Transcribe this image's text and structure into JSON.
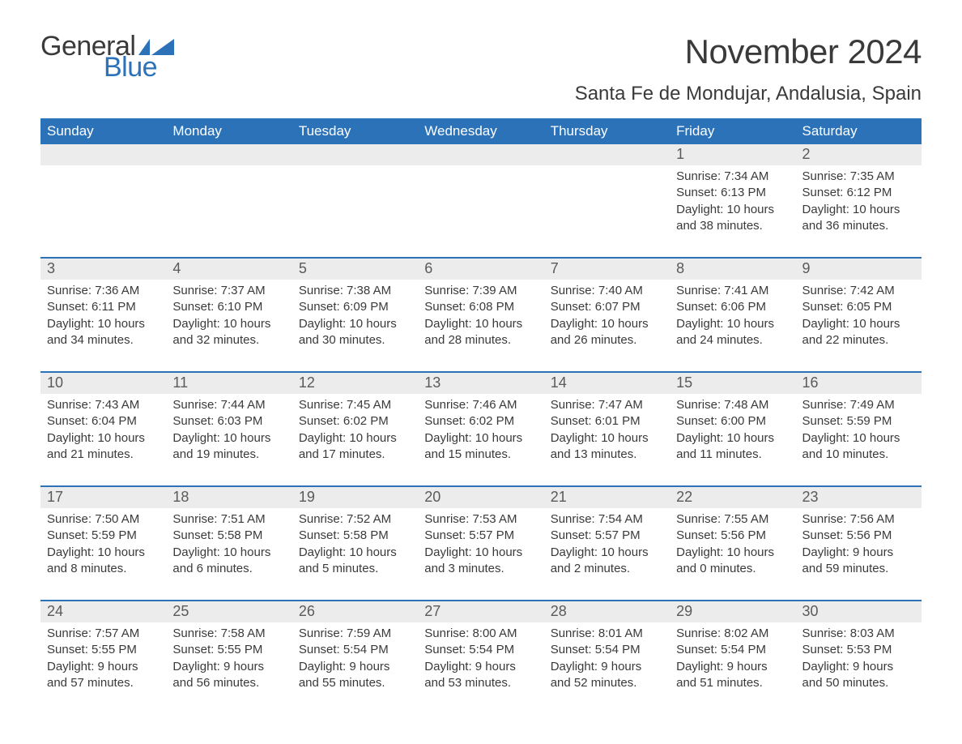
{
  "brand": {
    "general": "General",
    "blue": "Blue"
  },
  "colors": {
    "header_bg": "#2b72b9",
    "header_text": "#ffffff",
    "daynum_bg": "#ececec",
    "daynum_text": "#5a5a5a",
    "body_text": "#3a3a3a",
    "row_border": "#2b72b9",
    "brand_blue": "#2b72b9"
  },
  "title": "November 2024",
  "location": "Santa Fe de Mondujar, Andalusia, Spain",
  "day_headers": [
    "Sunday",
    "Monday",
    "Tuesday",
    "Wednesday",
    "Thursday",
    "Friday",
    "Saturday"
  ],
  "weeks": [
    [
      null,
      null,
      null,
      null,
      null,
      {
        "num": "1",
        "sunrise": "Sunrise: 7:34 AM",
        "sunset": "Sunset: 6:13 PM",
        "day1": "Daylight: 10 hours",
        "day2": "and 38 minutes."
      },
      {
        "num": "2",
        "sunrise": "Sunrise: 7:35 AM",
        "sunset": "Sunset: 6:12 PM",
        "day1": "Daylight: 10 hours",
        "day2": "and 36 minutes."
      }
    ],
    [
      {
        "num": "3",
        "sunrise": "Sunrise: 7:36 AM",
        "sunset": "Sunset: 6:11 PM",
        "day1": "Daylight: 10 hours",
        "day2": "and 34 minutes."
      },
      {
        "num": "4",
        "sunrise": "Sunrise: 7:37 AM",
        "sunset": "Sunset: 6:10 PM",
        "day1": "Daylight: 10 hours",
        "day2": "and 32 minutes."
      },
      {
        "num": "5",
        "sunrise": "Sunrise: 7:38 AM",
        "sunset": "Sunset: 6:09 PM",
        "day1": "Daylight: 10 hours",
        "day2": "and 30 minutes."
      },
      {
        "num": "6",
        "sunrise": "Sunrise: 7:39 AM",
        "sunset": "Sunset: 6:08 PM",
        "day1": "Daylight: 10 hours",
        "day2": "and 28 minutes."
      },
      {
        "num": "7",
        "sunrise": "Sunrise: 7:40 AM",
        "sunset": "Sunset: 6:07 PM",
        "day1": "Daylight: 10 hours",
        "day2": "and 26 minutes."
      },
      {
        "num": "8",
        "sunrise": "Sunrise: 7:41 AM",
        "sunset": "Sunset: 6:06 PM",
        "day1": "Daylight: 10 hours",
        "day2": "and 24 minutes."
      },
      {
        "num": "9",
        "sunrise": "Sunrise: 7:42 AM",
        "sunset": "Sunset: 6:05 PM",
        "day1": "Daylight: 10 hours",
        "day2": "and 22 minutes."
      }
    ],
    [
      {
        "num": "10",
        "sunrise": "Sunrise: 7:43 AM",
        "sunset": "Sunset: 6:04 PM",
        "day1": "Daylight: 10 hours",
        "day2": "and 21 minutes."
      },
      {
        "num": "11",
        "sunrise": "Sunrise: 7:44 AM",
        "sunset": "Sunset: 6:03 PM",
        "day1": "Daylight: 10 hours",
        "day2": "and 19 minutes."
      },
      {
        "num": "12",
        "sunrise": "Sunrise: 7:45 AM",
        "sunset": "Sunset: 6:02 PM",
        "day1": "Daylight: 10 hours",
        "day2": "and 17 minutes."
      },
      {
        "num": "13",
        "sunrise": "Sunrise: 7:46 AM",
        "sunset": "Sunset: 6:02 PM",
        "day1": "Daylight: 10 hours",
        "day2": "and 15 minutes."
      },
      {
        "num": "14",
        "sunrise": "Sunrise: 7:47 AM",
        "sunset": "Sunset: 6:01 PM",
        "day1": "Daylight: 10 hours",
        "day2": "and 13 minutes."
      },
      {
        "num": "15",
        "sunrise": "Sunrise: 7:48 AM",
        "sunset": "Sunset: 6:00 PM",
        "day1": "Daylight: 10 hours",
        "day2": "and 11 minutes."
      },
      {
        "num": "16",
        "sunrise": "Sunrise: 7:49 AM",
        "sunset": "Sunset: 5:59 PM",
        "day1": "Daylight: 10 hours",
        "day2": "and 10 minutes."
      }
    ],
    [
      {
        "num": "17",
        "sunrise": "Sunrise: 7:50 AM",
        "sunset": "Sunset: 5:59 PM",
        "day1": "Daylight: 10 hours",
        "day2": "and 8 minutes."
      },
      {
        "num": "18",
        "sunrise": "Sunrise: 7:51 AM",
        "sunset": "Sunset: 5:58 PM",
        "day1": "Daylight: 10 hours",
        "day2": "and 6 minutes."
      },
      {
        "num": "19",
        "sunrise": "Sunrise: 7:52 AM",
        "sunset": "Sunset: 5:58 PM",
        "day1": "Daylight: 10 hours",
        "day2": "and 5 minutes."
      },
      {
        "num": "20",
        "sunrise": "Sunrise: 7:53 AM",
        "sunset": "Sunset: 5:57 PM",
        "day1": "Daylight: 10 hours",
        "day2": "and 3 minutes."
      },
      {
        "num": "21",
        "sunrise": "Sunrise: 7:54 AM",
        "sunset": "Sunset: 5:57 PM",
        "day1": "Daylight: 10 hours",
        "day2": "and 2 minutes."
      },
      {
        "num": "22",
        "sunrise": "Sunrise: 7:55 AM",
        "sunset": "Sunset: 5:56 PM",
        "day1": "Daylight: 10 hours",
        "day2": "and 0 minutes."
      },
      {
        "num": "23",
        "sunrise": "Sunrise: 7:56 AM",
        "sunset": "Sunset: 5:56 PM",
        "day1": "Daylight: 9 hours",
        "day2": "and 59 minutes."
      }
    ],
    [
      {
        "num": "24",
        "sunrise": "Sunrise: 7:57 AM",
        "sunset": "Sunset: 5:55 PM",
        "day1": "Daylight: 9 hours",
        "day2": "and 57 minutes."
      },
      {
        "num": "25",
        "sunrise": "Sunrise: 7:58 AM",
        "sunset": "Sunset: 5:55 PM",
        "day1": "Daylight: 9 hours",
        "day2": "and 56 minutes."
      },
      {
        "num": "26",
        "sunrise": "Sunrise: 7:59 AM",
        "sunset": "Sunset: 5:54 PM",
        "day1": "Daylight: 9 hours",
        "day2": "and 55 minutes."
      },
      {
        "num": "27",
        "sunrise": "Sunrise: 8:00 AM",
        "sunset": "Sunset: 5:54 PM",
        "day1": "Daylight: 9 hours",
        "day2": "and 53 minutes."
      },
      {
        "num": "28",
        "sunrise": "Sunrise: 8:01 AM",
        "sunset": "Sunset: 5:54 PM",
        "day1": "Daylight: 9 hours",
        "day2": "and 52 minutes."
      },
      {
        "num": "29",
        "sunrise": "Sunrise: 8:02 AM",
        "sunset": "Sunset: 5:54 PM",
        "day1": "Daylight: 9 hours",
        "day2": "and 51 minutes."
      },
      {
        "num": "30",
        "sunrise": "Sunrise: 8:03 AM",
        "sunset": "Sunset: 5:53 PM",
        "day1": "Daylight: 9 hours",
        "day2": "and 50 minutes."
      }
    ]
  ]
}
